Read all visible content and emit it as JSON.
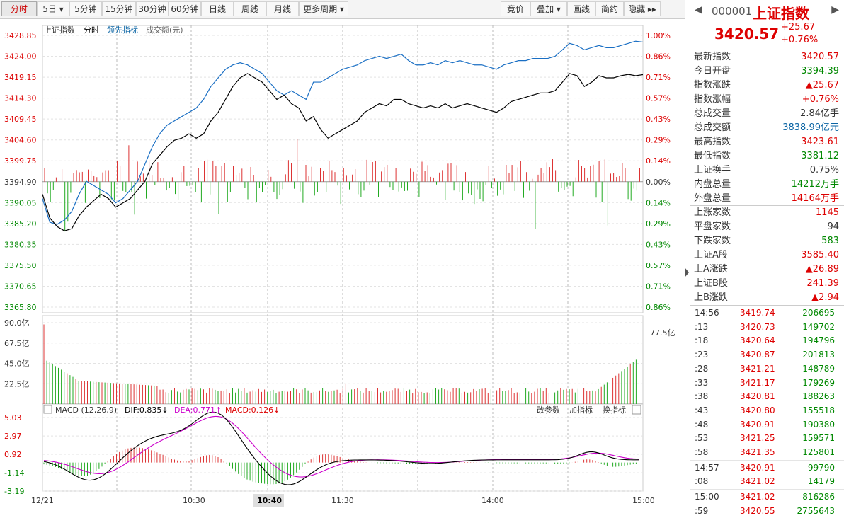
{
  "toolbar": {
    "left": [
      "分时",
      "5日",
      "5分钟",
      "15分钟",
      "30分钟",
      "60分钟",
      "日线",
      "周线",
      "月线",
      "更多周期"
    ],
    "right": [
      "竞价",
      "叠加",
      "画线",
      "简约",
      "隐藏"
    ]
  },
  "legend": {
    "name": "上证指数",
    "mode": "分时",
    "lead": "领先指标",
    "amount": "成交额(元)"
  },
  "header": {
    "code": "000001",
    "name": "上证指数",
    "price": "3420.57",
    "change": "+25.67",
    "pct": "+0.76%"
  },
  "stats": [
    {
      "k": "最新指数",
      "v": "3420.57",
      "c": "red"
    },
    {
      "k": "今日开盘",
      "v": "3394.39",
      "c": "green"
    },
    {
      "k": "指数涨跌",
      "v": "▲25.67",
      "c": "red"
    },
    {
      "k": "指数涨幅",
      "v": "+0.76%",
      "c": "red"
    },
    {
      "k": "总成交量",
      "v": "2.84亿手",
      "c": ""
    },
    {
      "k": "总成交额",
      "v": "3838.99亿元",
      "c": "blue"
    },
    {
      "k": "最高指数",
      "v": "3423.61",
      "c": "red"
    },
    {
      "k": "最低指数",
      "v": "3381.12",
      "c": "green"
    },
    {
      "k": "上证换手",
      "v": "0.75%",
      "c": ""
    },
    {
      "k": "内盘总量",
      "v": "14212万手",
      "c": "green"
    },
    {
      "k": "外盘总量",
      "v": "14164万手",
      "c": "red"
    },
    {
      "k": "上涨家数",
      "v": "1145",
      "c": "red"
    },
    {
      "k": "平盘家数",
      "v": "94",
      "c": ""
    },
    {
      "k": "下跌家数",
      "v": "583",
      "c": "green"
    },
    {
      "k": "上证A股",
      "v": "3585.40",
      "c": "red"
    },
    {
      "k": "上A涨跌",
      "v": "▲26.89",
      "c": "red"
    },
    {
      "k": "上证B股",
      "v": "241.39",
      "c": "red"
    },
    {
      "k": "上B涨跌",
      "v": "▲2.94",
      "c": "red"
    }
  ],
  "ticks": [
    {
      "t": "14:56",
      "p": "3419.74",
      "q": "206695"
    },
    {
      "t": ":13",
      "p": "3420.73",
      "q": "149702"
    },
    {
      "t": ":18",
      "p": "3420.64",
      "q": "194796"
    },
    {
      "t": ":23",
      "p": "3420.87",
      "q": "201813"
    },
    {
      "t": ":28",
      "p": "3421.21",
      "q": "148789"
    },
    {
      "t": ":33",
      "p": "3421.17",
      "q": "179269"
    },
    {
      "t": ":38",
      "p": "3420.81",
      "q": "188263"
    },
    {
      "t": ":43",
      "p": "3420.80",
      "q": "155518"
    },
    {
      "t": ":48",
      "p": "3420.91",
      "q": "190380"
    },
    {
      "t": ":53",
      "p": "3421.25",
      "q": "159571"
    },
    {
      "t": ":58",
      "p": "3421.35",
      "q": "125801"
    },
    {
      "t": "14:57",
      "p": "3420.91",
      "q": "99790"
    },
    {
      "t": ":08",
      "p": "3421.02",
      "q": "14179"
    },
    {
      "t": "15:00",
      "p": "3421.02",
      "q": "816286"
    },
    {
      "t": ":59",
      "p": "3420.55",
      "q": "2755643"
    }
  ],
  "macd_legend": {
    "title": "MACD (12,26,9)",
    "dif": "DIF:0.835↓",
    "dea": "DEA:0.771↑",
    "macd": "MACD:0.126↓",
    "btns": [
      "改参数",
      "加指标",
      "换指标"
    ]
  },
  "chart_data": {
    "type": "line",
    "date": "12/21",
    "x_labels": [
      "10:30",
      "10:40",
      "11:30",
      "14:00",
      "15:00"
    ],
    "price_ticks": [
      "3428.85",
      "3424.00",
      "3419.15",
      "3414.30",
      "3409.45",
      "3404.60",
      "3399.75",
      "3394.90",
      "3390.05",
      "3385.20",
      "3380.35",
      "3375.50",
      "3370.65",
      "3365.80"
    ],
    "pct_ticks": [
      "1.00%",
      "0.86%",
      "0.71%",
      "0.57%",
      "0.43%",
      "0.29%",
      "0.14%",
      "0.00%",
      "0.14%",
      "0.29%",
      "0.43%",
      "0.57%",
      "0.71%",
      "0.86%"
    ],
    "prev_close": 3394.9,
    "ylim": [
      3365.8,
      3428.85
    ],
    "price_series": [
      [
        0,
        3392
      ],
      [
        5,
        3386.5
      ],
      [
        10,
        3384.5
      ],
      [
        15,
        3383.5
      ],
      [
        20,
        3384
      ],
      [
        25,
        3387
      ],
      [
        30,
        3389
      ],
      [
        35,
        3390.5
      ],
      [
        40,
        3392
      ],
      [
        45,
        3391
      ],
      [
        50,
        3389
      ],
      [
        55,
        3390
      ],
      [
        60,
        3391
      ],
      [
        65,
        3393
      ],
      [
        70,
        3395
      ],
      [
        75,
        3399
      ],
      [
        80,
        3401
      ],
      [
        85,
        3403
      ],
      [
        90,
        3404.5
      ],
      [
        95,
        3405
      ],
      [
        100,
        3406
      ],
      [
        105,
        3405
      ],
      [
        110,
        3406
      ],
      [
        115,
        3409
      ],
      [
        120,
        3411
      ],
      [
        125,
        3414
      ],
      [
        130,
        3417
      ],
      [
        135,
        3419
      ],
      [
        140,
        3420
      ],
      [
        145,
        3419
      ],
      [
        150,
        3418
      ],
      [
        155,
        3416
      ],
      [
        160,
        3414
      ],
      [
        165,
        3415
      ],
      [
        170,
        3413
      ],
      [
        175,
        3412
      ],
      [
        180,
        3409
      ],
      [
        185,
        3410
      ],
      [
        190,
        3407
      ],
      [
        195,
        3405
      ],
      [
        200,
        3406
      ],
      [
        205,
        3407
      ],
      [
        210,
        3408
      ],
      [
        215,
        3409
      ],
      [
        220,
        3411
      ],
      [
        225,
        3412
      ],
      [
        230,
        3413
      ],
      [
        235,
        3412.5
      ],
      [
        240,
        3414
      ],
      [
        245,
        3414
      ],
      [
        250,
        3413
      ],
      [
        255,
        3412.5
      ],
      [
        260,
        3412
      ],
      [
        265,
        3412.5
      ],
      [
        270,
        3412
      ],
      [
        275,
        3413
      ],
      [
        280,
        3412
      ],
      [
        285,
        3412.5
      ],
      [
        290,
        3413
      ],
      [
        295,
        3412.5
      ],
      [
        300,
        3412
      ],
      [
        305,
        3411.5
      ],
      [
        310,
        3411
      ],
      [
        315,
        3412
      ],
      [
        320,
        3413.5
      ],
      [
        325,
        3414
      ],
      [
        330,
        3414.5
      ],
      [
        335,
        3415
      ],
      [
        340,
        3415.5
      ],
      [
        345,
        3415.5
      ],
      [
        350,
        3416
      ],
      [
        355,
        3418
      ],
      [
        360,
        3420
      ],
      [
        365,
        3419.5
      ],
      [
        370,
        3417
      ],
      [
        375,
        3418
      ],
      [
        380,
        3419.5
      ],
      [
        385,
        3419
      ],
      [
        390,
        3419
      ],
      [
        395,
        3419.5
      ],
      [
        400,
        3419.8
      ],
      [
        405,
        3419.5
      ],
      [
        410,
        3419.74
      ]
    ],
    "lead_series": [
      [
        0,
        3391
      ],
      [
        5,
        3385.5
      ],
      [
        10,
        3385
      ],
      [
        15,
        3386
      ],
      [
        20,
        3388
      ],
      [
        25,
        3392
      ],
      [
        30,
        3395
      ],
      [
        35,
        3394
      ],
      [
        40,
        3393
      ],
      [
        45,
        3392
      ],
      [
        50,
        3390
      ],
      [
        55,
        3391
      ],
      [
        60,
        3393
      ],
      [
        65,
        3395
      ],
      [
        70,
        3399
      ],
      [
        75,
        3403
      ],
      [
        80,
        3406
      ],
      [
        85,
        3408
      ],
      [
        90,
        3409
      ],
      [
        95,
        3410
      ],
      [
        100,
        3411
      ],
      [
        105,
        3412
      ],
      [
        110,
        3414
      ],
      [
        115,
        3417
      ],
      [
        120,
        3419
      ],
      [
        125,
        3421
      ],
      [
        130,
        3422
      ],
      [
        135,
        3422.5
      ],
      [
        140,
        3422
      ],
      [
        145,
        3421
      ],
      [
        150,
        3420
      ],
      [
        155,
        3418
      ],
      [
        160,
        3416
      ],
      [
        165,
        3415
      ],
      [
        170,
        3416
      ],
      [
        175,
        3415
      ],
      [
        180,
        3414
      ],
      [
        185,
        3418
      ],
      [
        190,
        3418
      ],
      [
        195,
        3419
      ],
      [
        200,
        3420
      ],
      [
        205,
        3421
      ],
      [
        210,
        3421.5
      ],
      [
        215,
        3422
      ],
      [
        220,
        3423
      ],
      [
        225,
        3423.5
      ],
      [
        230,
        3424
      ],
      [
        235,
        3423.5
      ],
      [
        240,
        3424
      ],
      [
        245,
        3424.5
      ],
      [
        250,
        3423
      ],
      [
        255,
        3422
      ],
      [
        260,
        3422
      ],
      [
        265,
        3422.5
      ],
      [
        270,
        3422
      ],
      [
        275,
        3423
      ],
      [
        280,
        3422.5
      ],
      [
        285,
        3423
      ],
      [
        290,
        3422.5
      ],
      [
        295,
        3422
      ],
      [
        300,
        3422
      ],
      [
        305,
        3421.5
      ],
      [
        310,
        3421
      ],
      [
        315,
        3422
      ],
      [
        320,
        3422.5
      ],
      [
        325,
        3423
      ],
      [
        330,
        3423
      ],
      [
        335,
        3423.5
      ],
      [
        340,
        3423.5
      ],
      [
        345,
        3423.5
      ],
      [
        350,
        3424
      ],
      [
        355,
        3425.5
      ],
      [
        360,
        3427
      ],
      [
        365,
        3426.5
      ],
      [
        370,
        3425.5
      ],
      [
        375,
        3426
      ],
      [
        380,
        3426.5
      ],
      [
        385,
        3426
      ],
      [
        390,
        3426
      ],
      [
        395,
        3426.5
      ],
      [
        400,
        3427
      ],
      [
        405,
        3427.5
      ],
      [
        410,
        3427.3
      ]
    ],
    "vol_ticks": [
      "90.0亿",
      "67.5亿",
      "45.0亿",
      "22.5亿"
    ],
    "vol_ylim": [
      0,
      90
    ],
    "vol_label": "77.5亿",
    "macd_ticks": [
      "5.03",
      "2.97",
      "0.92",
      "-1.14",
      "-3.19"
    ],
    "macd_ylim": [
      -3.19,
      5.03
    ]
  }
}
